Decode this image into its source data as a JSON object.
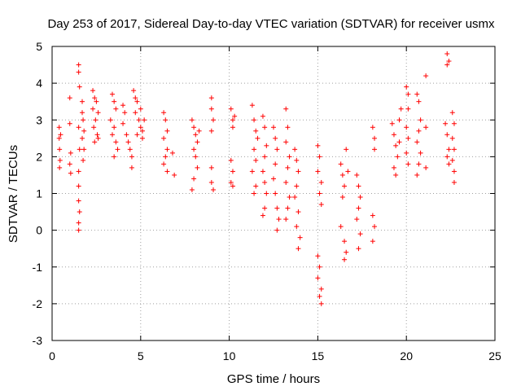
{
  "chart_data": {
    "type": "scatter",
    "title": "Day 253 of 2017, Sidereal Day-to-day VTEC variation (SDTVAR) for receiver usmx",
    "xlabel": "GPS time / hours",
    "ylabel": "SDTVAR / TECUs",
    "xlim": [
      0,
      25
    ],
    "ylim": [
      -3,
      5
    ],
    "xticks": [
      "0",
      "5",
      "10",
      "15",
      "20",
      "25"
    ],
    "yticks": [
      "-3",
      "-2",
      "-1",
      "0",
      "1",
      "2",
      "3",
      "4",
      "5"
    ],
    "grid": true,
    "marker": "+",
    "color": "#ff0000",
    "series": [
      {
        "name": "SDTVAR",
        "points": [
          [
            0.4,
            2.8
          ],
          [
            0.4,
            2.5
          ],
          [
            0.42,
            2.2
          ],
          [
            0.45,
            1.9
          ],
          [
            0.42,
            1.7
          ],
          [
            0.48,
            2.6
          ],
          [
            1.0,
            3.6
          ],
          [
            1.0,
            2.9
          ],
          [
            1.05,
            2.1
          ],
          [
            1.0,
            1.8
          ],
          [
            1.05,
            1.55
          ],
          [
            1.5,
            4.5
          ],
          [
            1.5,
            4.3
          ],
          [
            1.55,
            3.9
          ],
          [
            1.5,
            2.8
          ],
          [
            1.55,
            2.2
          ],
          [
            1.5,
            1.6
          ],
          [
            1.5,
            1.2
          ],
          [
            1.5,
            0.8
          ],
          [
            1.55,
            0.5
          ],
          [
            1.5,
            0.2
          ],
          [
            1.5,
            0.0
          ],
          [
            1.7,
            3.5
          ],
          [
            1.7,
            3.2
          ],
          [
            1.75,
            3.0
          ],
          [
            1.8,
            2.7
          ],
          [
            1.7,
            2.5
          ],
          [
            1.8,
            2.2
          ],
          [
            1.75,
            1.9
          ],
          [
            2.3,
            3.8
          ],
          [
            2.4,
            3.6
          ],
          [
            2.5,
            3.5
          ],
          [
            2.3,
            3.3
          ],
          [
            2.6,
            3.2
          ],
          [
            2.45,
            3.0
          ],
          [
            2.35,
            2.8
          ],
          [
            2.55,
            2.6
          ],
          [
            2.4,
            2.4
          ],
          [
            2.6,
            2.5
          ],
          [
            3.4,
            3.7
          ],
          [
            3.5,
            3.5
          ],
          [
            3.6,
            3.3
          ],
          [
            3.3,
            3.0
          ],
          [
            3.5,
            2.8
          ],
          [
            3.4,
            2.6
          ],
          [
            3.6,
            2.4
          ],
          [
            3.7,
            2.2
          ],
          [
            3.5,
            2.0
          ],
          [
            4.0,
            3.4
          ],
          [
            4.1,
            3.2
          ],
          [
            4.0,
            2.9
          ],
          [
            4.2,
            2.6
          ],
          [
            4.3,
            2.4
          ],
          [
            4.4,
            2.2
          ],
          [
            4.5,
            2.0
          ],
          [
            4.5,
            1.7
          ],
          [
            4.6,
            3.8
          ],
          [
            4.7,
            3.6
          ],
          [
            4.8,
            3.5
          ],
          [
            4.7,
            3.2
          ],
          [
            4.9,
            3.0
          ],
          [
            5.0,
            2.8
          ],
          [
            4.8,
            2.6
          ],
          [
            5.1,
            2.5
          ],
          [
            5.0,
            3.3
          ],
          [
            5.2,
            3.0
          ],
          [
            5.1,
            2.7
          ],
          [
            6.3,
            3.2
          ],
          [
            6.4,
            3.0
          ],
          [
            6.5,
            2.7
          ],
          [
            6.3,
            2.5
          ],
          [
            6.5,
            2.2
          ],
          [
            6.4,
            2.0
          ],
          [
            6.3,
            1.8
          ],
          [
            6.5,
            1.6
          ],
          [
            6.8,
            2.1
          ],
          [
            6.9,
            1.5
          ],
          [
            7.9,
            3.0
          ],
          [
            8.0,
            2.8
          ],
          [
            8.1,
            2.6
          ],
          [
            8.2,
            2.4
          ],
          [
            8.0,
            2.2
          ],
          [
            8.1,
            2.0
          ],
          [
            8.2,
            1.7
          ],
          [
            8.0,
            1.4
          ],
          [
            7.9,
            1.1
          ],
          [
            8.3,
            2.7
          ],
          [
            9.0,
            3.6
          ],
          [
            9.0,
            3.3
          ],
          [
            9.1,
            3.0
          ],
          [
            9.0,
            2.7
          ],
          [
            9.0,
            1.7
          ],
          [
            9.0,
            1.3
          ],
          [
            9.1,
            1.1
          ],
          [
            10.1,
            3.3
          ],
          [
            10.2,
            3.0
          ],
          [
            10.3,
            3.1
          ],
          [
            10.2,
            2.8
          ],
          [
            10.1,
            1.9
          ],
          [
            10.2,
            1.6
          ],
          [
            10.1,
            1.3
          ],
          [
            10.2,
            1.2
          ],
          [
            11.3,
            3.4
          ],
          [
            11.4,
            3.0
          ],
          [
            11.5,
            2.7
          ],
          [
            11.6,
            2.5
          ],
          [
            11.4,
            2.2
          ],
          [
            11.5,
            1.9
          ],
          [
            11.3,
            1.6
          ],
          [
            11.5,
            1.2
          ],
          [
            11.4,
            1.0
          ],
          [
            11.9,
            3.1
          ],
          [
            12.0,
            2.8
          ],
          [
            12.1,
            2.3
          ],
          [
            12.0,
            2.0
          ],
          [
            11.9,
            1.6
          ],
          [
            12.0,
            1.3
          ],
          [
            12.1,
            1.0
          ],
          [
            12.0,
            0.6
          ],
          [
            11.9,
            0.4
          ],
          [
            12.5,
            2.8
          ],
          [
            12.6,
            2.5
          ],
          [
            12.7,
            2.2
          ],
          [
            12.6,
            1.8
          ],
          [
            12.5,
            1.4
          ],
          [
            12.6,
            1.0
          ],
          [
            12.7,
            0.6
          ],
          [
            12.8,
            0.3
          ],
          [
            12.7,
            0.0
          ],
          [
            13.2,
            3.3
          ],
          [
            13.3,
            2.8
          ],
          [
            13.2,
            2.4
          ],
          [
            13.4,
            2.0
          ],
          [
            13.3,
            1.7
          ],
          [
            13.2,
            1.3
          ],
          [
            13.4,
            0.9
          ],
          [
            13.3,
            0.6
          ],
          [
            13.2,
            0.3
          ],
          [
            13.7,
            2.2
          ],
          [
            13.8,
            1.9
          ],
          [
            13.9,
            1.6
          ],
          [
            13.8,
            1.2
          ],
          [
            13.7,
            0.9
          ],
          [
            13.9,
            0.5
          ],
          [
            13.8,
            0.1
          ],
          [
            14.0,
            -0.2
          ],
          [
            13.9,
            -0.5
          ],
          [
            15.0,
            2.3
          ],
          [
            15.1,
            2.0
          ],
          [
            15.0,
            1.6
          ],
          [
            15.2,
            1.3
          ],
          [
            15.1,
            1.0
          ],
          [
            15.2,
            0.7
          ],
          [
            15.0,
            -0.7
          ],
          [
            15.1,
            -1.0
          ],
          [
            15.0,
            -1.3
          ],
          [
            15.2,
            -1.6
          ],
          [
            15.1,
            -1.8
          ],
          [
            15.2,
            -2.0
          ],
          [
            16.3,
            1.8
          ],
          [
            16.4,
            1.5
          ],
          [
            16.5,
            1.2
          ],
          [
            16.4,
            0.9
          ],
          [
            16.3,
            0.1
          ],
          [
            16.5,
            -0.3
          ],
          [
            16.6,
            -0.6
          ],
          [
            16.5,
            -0.8
          ],
          [
            16.6,
            2.2
          ],
          [
            16.7,
            1.6
          ],
          [
            17.2,
            1.5
          ],
          [
            17.3,
            1.2
          ],
          [
            17.4,
            0.9
          ],
          [
            17.3,
            0.6
          ],
          [
            17.2,
            0.3
          ],
          [
            17.4,
            -0.1
          ],
          [
            17.3,
            -0.5
          ],
          [
            18.1,
            2.8
          ],
          [
            18.2,
            2.5
          ],
          [
            18.2,
            2.2
          ],
          [
            18.1,
            0.4
          ],
          [
            18.2,
            0.1
          ],
          [
            18.1,
            -0.3
          ],
          [
            19.2,
            2.9
          ],
          [
            19.3,
            2.6
          ],
          [
            19.4,
            2.3
          ],
          [
            19.5,
            2.0
          ],
          [
            19.3,
            1.7
          ],
          [
            19.4,
            1.5
          ],
          [
            19.6,
            3.0
          ],
          [
            19.7,
            3.3
          ],
          [
            19.6,
            2.4
          ],
          [
            20.0,
            3.9
          ],
          [
            20.1,
            3.7
          ],
          [
            20.1,
            3.3
          ],
          [
            20.0,
            2.8
          ],
          [
            20.1,
            2.5
          ],
          [
            20.0,
            2.1
          ],
          [
            20.1,
            1.8
          ],
          [
            20.6,
            3.7
          ],
          [
            20.7,
            3.5
          ],
          [
            20.8,
            3.0
          ],
          [
            20.7,
            2.7
          ],
          [
            20.6,
            2.4
          ],
          [
            20.8,
            2.1
          ],
          [
            20.7,
            1.8
          ],
          [
            20.6,
            1.5
          ],
          [
            21.1,
            1.7
          ],
          [
            21.1,
            4.2
          ],
          [
            21.1,
            2.8
          ],
          [
            22.3,
            4.8
          ],
          [
            22.4,
            4.6
          ],
          [
            22.3,
            4.5
          ],
          [
            22.2,
            2.9
          ],
          [
            22.3,
            2.6
          ],
          [
            22.4,
            2.2
          ],
          [
            22.3,
            2.0
          ],
          [
            22.4,
            1.8
          ],
          [
            22.6,
            3.2
          ],
          [
            22.7,
            2.9
          ],
          [
            22.6,
            2.5
          ],
          [
            22.7,
            2.2
          ],
          [
            22.6,
            1.9
          ],
          [
            22.7,
            1.6
          ],
          [
            22.7,
            1.3
          ]
        ]
      }
    ]
  }
}
